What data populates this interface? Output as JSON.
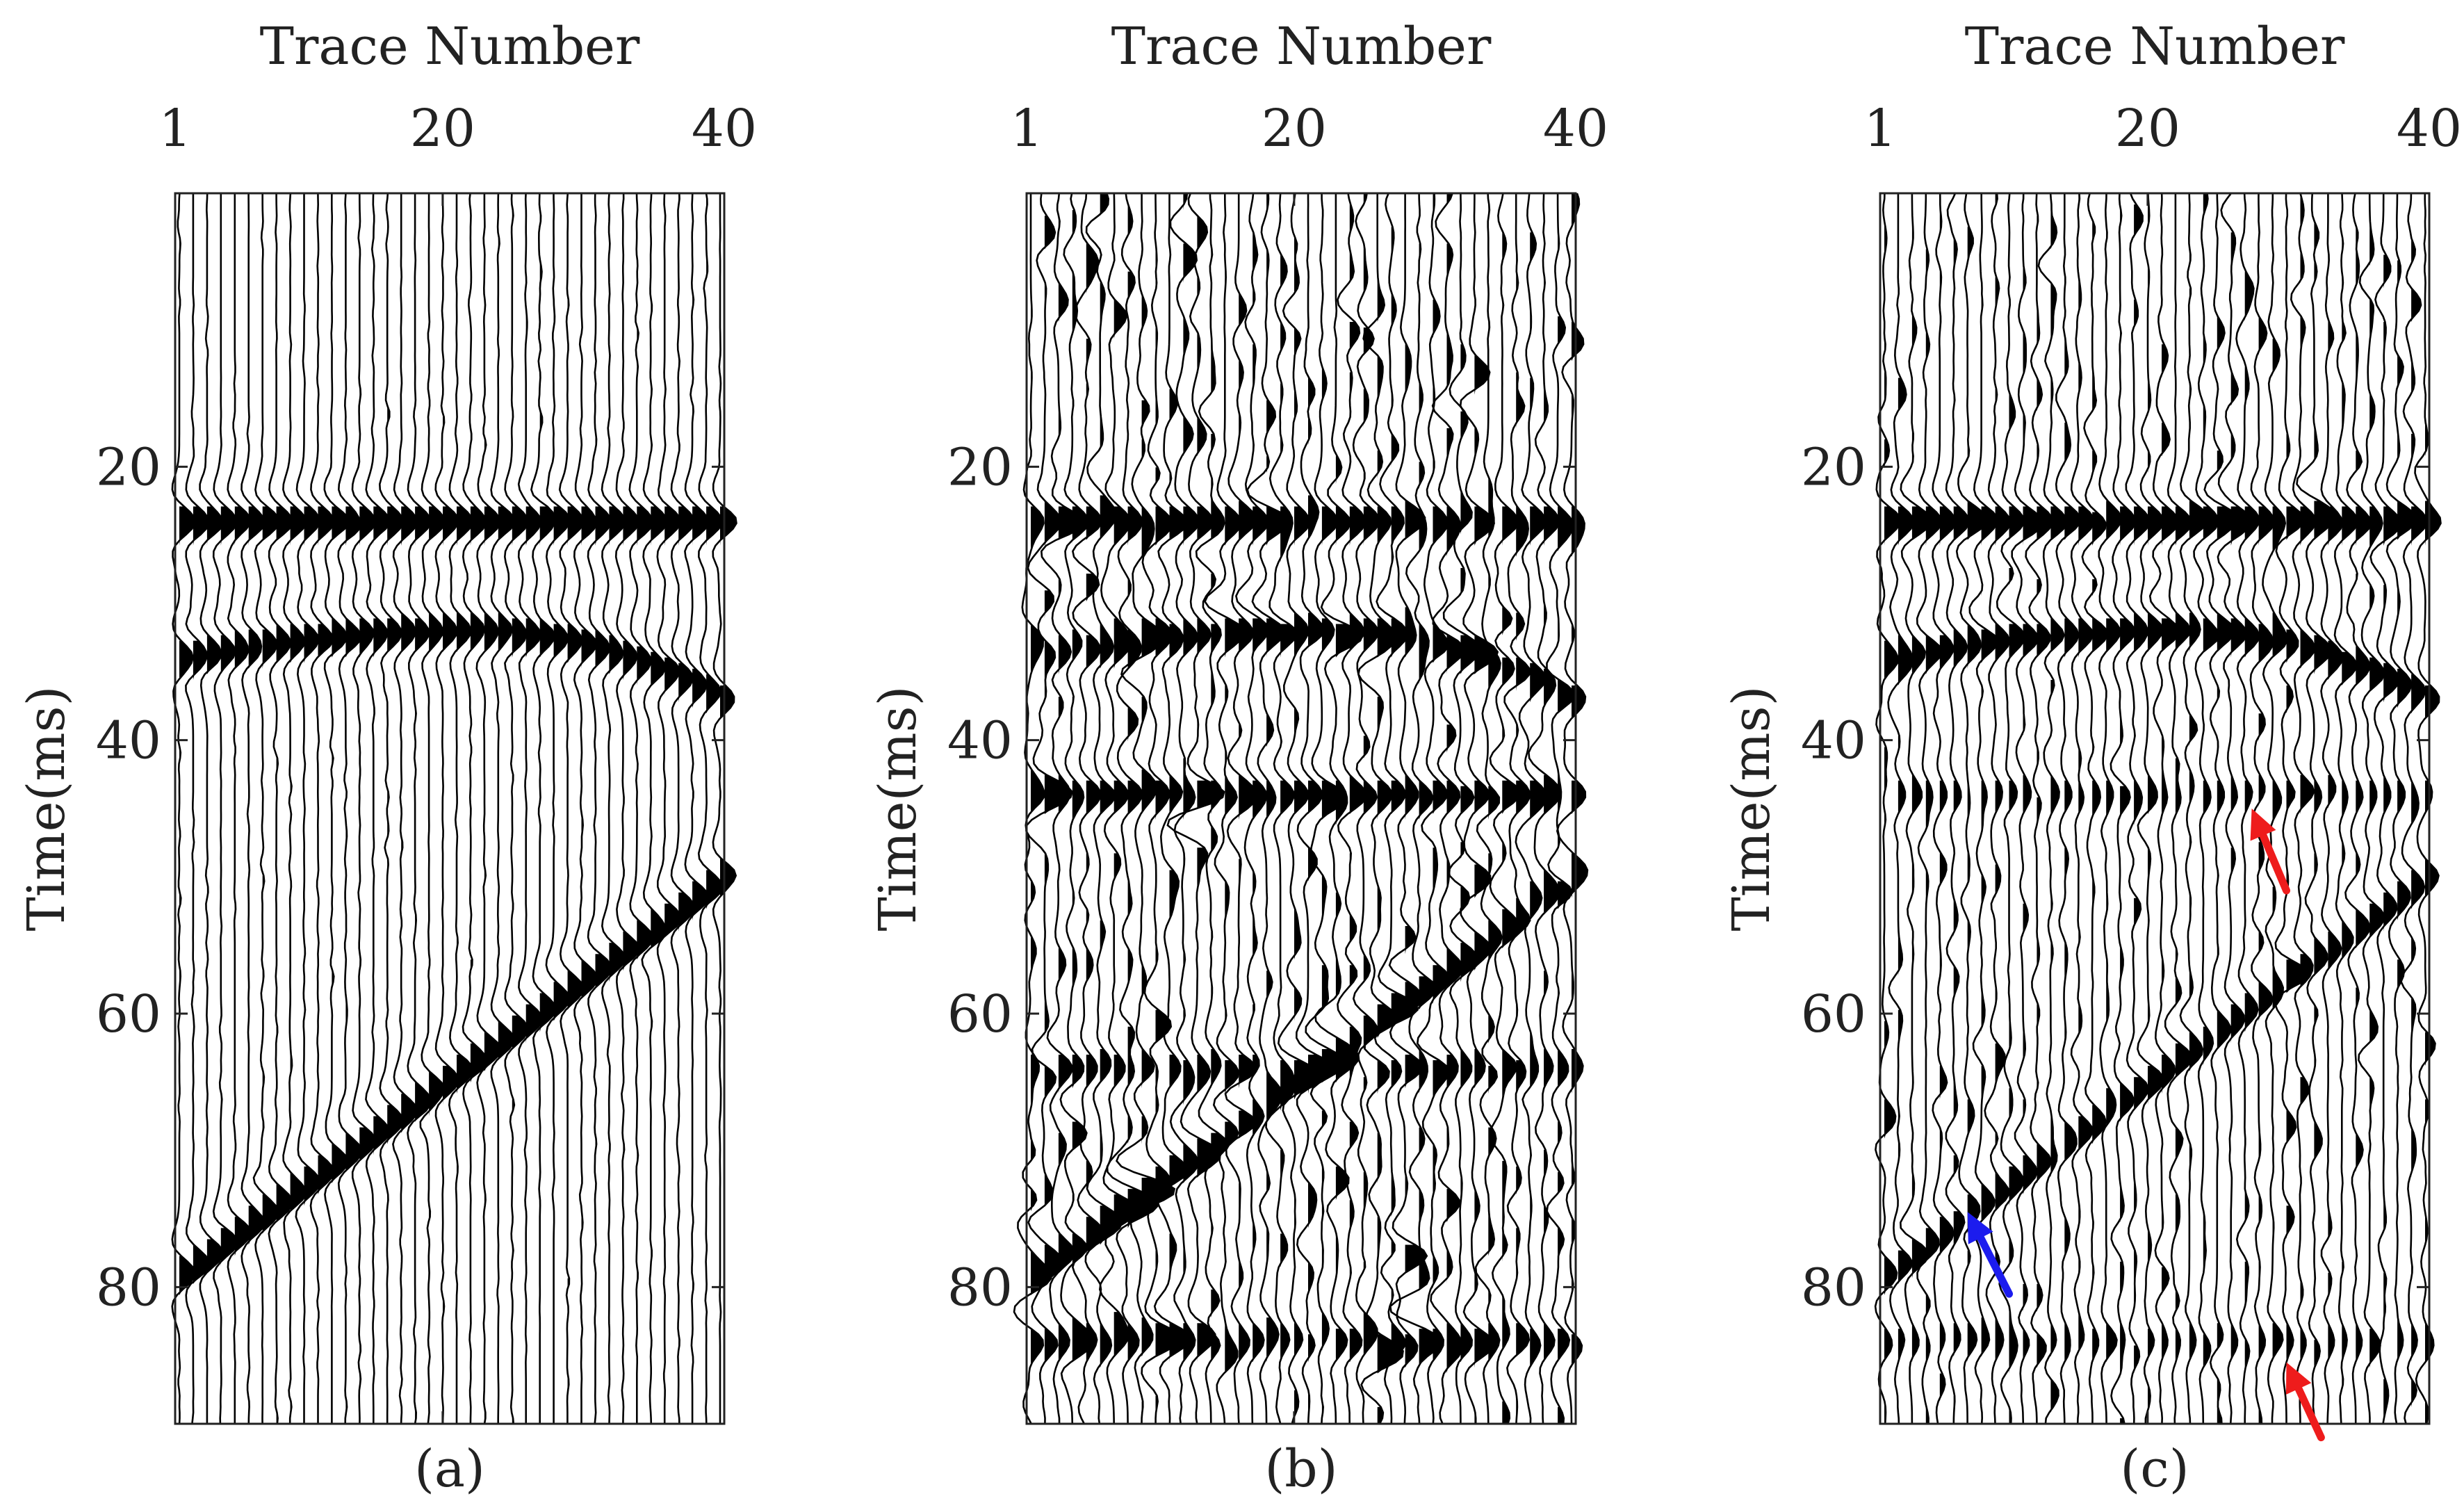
{
  "chart_data": [
    {
      "type": "seismic-wiggle",
      "caption": "(a)",
      "xlabel": "Trace Number",
      "ylabel": "Time(ms)",
      "x_ticks": [
        1,
        20,
        40
      ],
      "y_ticks": [
        20,
        40,
        60,
        80
      ],
      "traces": 40,
      "time_range_ms": [
        0,
        90
      ],
      "noise_level": 0.04,
      "events": [
        {
          "kind": "flat",
          "t0_ms": 24,
          "t1_ms": 24,
          "amp": 1.0
        },
        {
          "kind": "curved",
          "t0_ms": 34,
          "t1_ms": 37,
          "apex_trace": 22,
          "apex_ms": 32,
          "amp": 0.9
        },
        {
          "kind": "dipping",
          "t0_ms": 79,
          "t1_ms": 50,
          "amp": 1.0
        }
      ],
      "arrows": []
    },
    {
      "type": "seismic-wiggle",
      "caption": "(b)",
      "xlabel": "Trace Number",
      "ylabel": "Time(ms)",
      "x_ticks": [
        1,
        20,
        40
      ],
      "y_ticks": [
        20,
        40,
        60,
        80
      ],
      "traces": 40,
      "time_range_ms": [
        0,
        90
      ],
      "noise_level": 0.3,
      "events": [
        {
          "kind": "flat",
          "t0_ms": 24,
          "t1_ms": 24,
          "amp": 1.0
        },
        {
          "kind": "curved",
          "t0_ms": 34,
          "t1_ms": 37,
          "apex_trace": 22,
          "apex_ms": 32,
          "amp": 0.9
        },
        {
          "kind": "flat",
          "t0_ms": 44,
          "t1_ms": 44,
          "amp": 0.9
        },
        {
          "kind": "flat",
          "t0_ms": 64,
          "t1_ms": 64,
          "amp": 0.7
        },
        {
          "kind": "flat",
          "t0_ms": 84,
          "t1_ms": 84,
          "amp": 0.7
        },
        {
          "kind": "dipping",
          "t0_ms": 79,
          "t1_ms": 50,
          "amp": 1.0
        }
      ],
      "arrows": []
    },
    {
      "type": "seismic-wiggle",
      "caption": "(c)",
      "xlabel": "Trace Number",
      "ylabel": "Time(ms)",
      "x_ticks": [
        1,
        20,
        40
      ],
      "y_ticks": [
        20,
        40,
        60,
        80
      ],
      "traces": 40,
      "time_range_ms": [
        0,
        90
      ],
      "noise_level": 0.22,
      "events": [
        {
          "kind": "flat",
          "t0_ms": 24,
          "t1_ms": 24,
          "amp": 1.0
        },
        {
          "kind": "curved",
          "t0_ms": 34,
          "t1_ms": 37,
          "apex_trace": 22,
          "apex_ms": 32,
          "amp": 0.9
        },
        {
          "kind": "flat",
          "t0_ms": 44,
          "t1_ms": 44,
          "amp": 0.45
        },
        {
          "kind": "flat",
          "t0_ms": 84,
          "t1_ms": 84,
          "amp": 0.4
        },
        {
          "kind": "dipping",
          "t0_ms": 79,
          "t1_ms": 50,
          "amp": 0.85
        }
      ],
      "arrows": [
        {
          "color": "#ee1c1c",
          "tip_trace": 27.5,
          "tip_ms": 45,
          "tail_trace": 30,
          "tail_ms": 51
        },
        {
          "color": "#1c1cee",
          "tip_trace": 7,
          "tip_ms": 74.5,
          "tail_trace": 10,
          "tail_ms": 80.5
        },
        {
          "color": "#ee1c1c",
          "tip_trace": 30,
          "tip_ms": 85.5,
          "tail_trace": 32.5,
          "tail_ms": 91
        }
      ]
    }
  ]
}
